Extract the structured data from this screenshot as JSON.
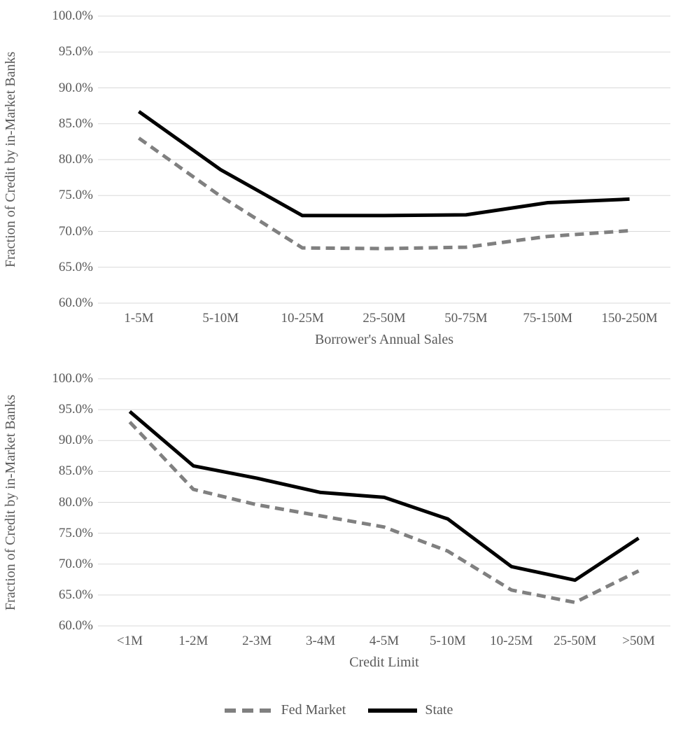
{
  "colors": {
    "fed_market": "#808080",
    "state": "#000000",
    "gridline": "#d9d9d9",
    "axis_text": "#595959",
    "background": "#ffffff"
  },
  "legend": {
    "items": [
      {
        "label": "Fed Market",
        "style": "dashed",
        "color": "#808080"
      },
      {
        "label": "State",
        "style": "solid",
        "color": "#000000"
      }
    ]
  },
  "chart_data": [
    {
      "type": "line",
      "title": "",
      "xlabel": "Borrower's Annual Sales",
      "ylabel": "Fraction of Credit by in-Market Banks",
      "categories": [
        "1-5M",
        "5-10M",
        "10-25M",
        "25-50M",
        "50-75M",
        "75-150M",
        "150-250M"
      ],
      "y_ticks": [
        "100.0%",
        "95.0%",
        "90.0%",
        "85.0%",
        "80.0%",
        "75.0%",
        "70.0%",
        "65.0%",
        "60.0%"
      ],
      "ylim": [
        60,
        100
      ],
      "grid": true,
      "legend_position": "shared-bottom",
      "series": [
        {
          "name": "Fed Market",
          "style": "dashed",
          "color": "#808080",
          "values": [
            83.0,
            74.9,
            67.7,
            67.6,
            67.8,
            69.3,
            70.1
          ]
        },
        {
          "name": "State",
          "style": "solid",
          "color": "#000000",
          "values": [
            86.7,
            78.6,
            72.2,
            72.2,
            72.3,
            74.0,
            74.5
          ]
        }
      ]
    },
    {
      "type": "line",
      "title": "",
      "xlabel": "Credit Limit",
      "ylabel": "Fraction of Credit by in-Market Banks",
      "categories": [
        "<1M",
        "1-2M",
        "2-3M",
        "3-4M",
        "4-5M",
        "5-10M",
        "10-25M",
        "25-50M",
        ">50M"
      ],
      "y_ticks": [
        "100.0%",
        "95.0%",
        "90.0%",
        "85.0%",
        "80.0%",
        "75.0%",
        "70.0%",
        "65.0%",
        "60.0%"
      ],
      "ylim": [
        60,
        100
      ],
      "grid": true,
      "legend_position": "shared-bottom",
      "series": [
        {
          "name": "Fed Market",
          "style": "dashed",
          "color": "#808080",
          "values": [
            93.0,
            82.1,
            79.6,
            77.8,
            76.0,
            72.1,
            65.8,
            63.8,
            68.9
          ]
        },
        {
          "name": "State",
          "style": "solid",
          "color": "#000000",
          "values": [
            94.7,
            85.9,
            83.9,
            81.6,
            80.8,
            77.3,
            69.6,
            67.4,
            74.2
          ]
        }
      ]
    }
  ]
}
